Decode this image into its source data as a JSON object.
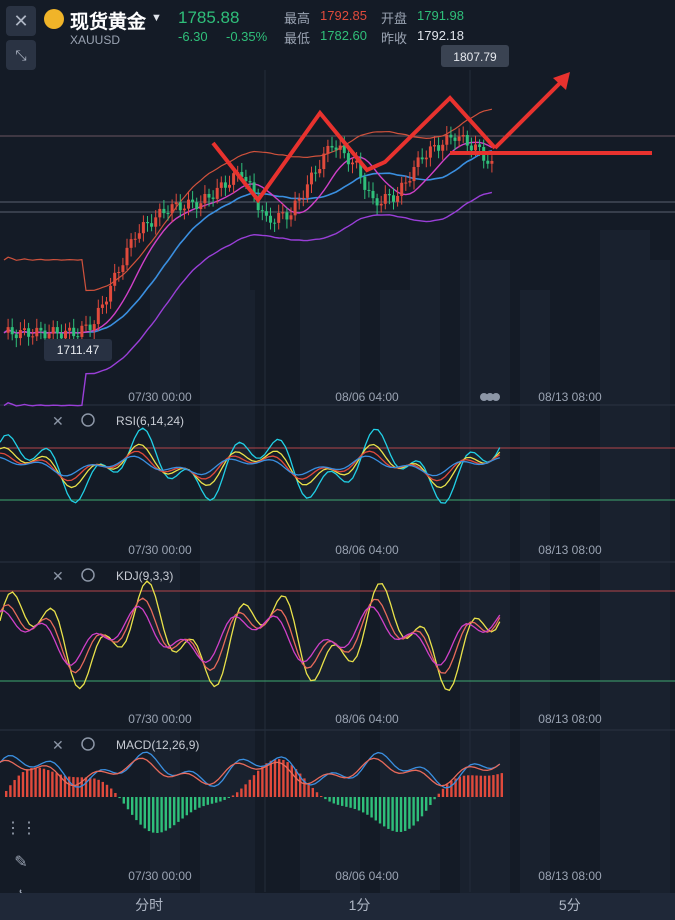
{
  "header": {
    "symbol_name": "现货黄金",
    "symbol_code": "XAUUSD",
    "last_price": "1785.88",
    "change": "-6.30",
    "change_pct": "-0.35%",
    "high_label": "最高",
    "high_value": "1792.85",
    "open_label": "开盘",
    "open_value": "1791.98",
    "low_label": "最低",
    "low_value": "1782.60",
    "prev_close_label": "昨收",
    "prev_close_value": "1792.18"
  },
  "price_panel": {
    "high_marker": "1807.79",
    "low_marker": "1711.47",
    "time_labels": [
      "07/30 00:00",
      "08/06 04:00",
      "08/13 08:00"
    ]
  },
  "indicators": {
    "rsi_label": "RSI(6,14,24)",
    "kdj_label": "KDJ(9,3,3)",
    "macd_label": "MACD(12,26,9)"
  },
  "timeframe_tabs": [
    "分时",
    "1分",
    "5分"
  ],
  "colors": {
    "up": "#e04a3c",
    "down": "#2fbf7a",
    "price": "#2fbf7a",
    "arrow": "#e8322e"
  },
  "icons": [
    "close-icon",
    "dropdown-caret-icon",
    "collapse-icon",
    "indicator-settings-icon",
    "draw-tool-icon",
    "trend-icon",
    "bubble-icon"
  ]
}
